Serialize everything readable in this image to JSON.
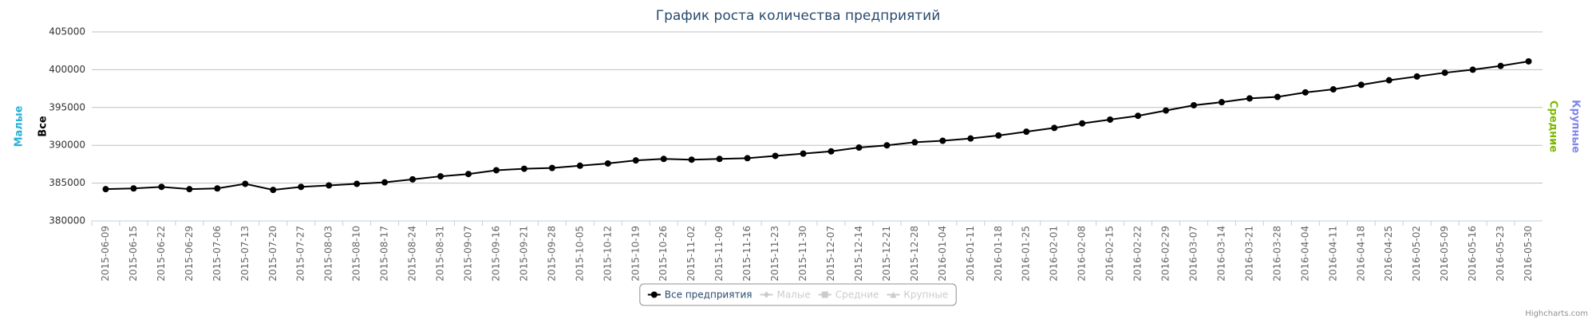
{
  "chart_data": {
    "type": "line",
    "title": "График роста количества предприятий",
    "categories": [
      "2015-06-09",
      "2015-06-15",
      "2015-06-22",
      "2015-06-29",
      "2015-07-06",
      "2015-07-13",
      "2015-07-20",
      "2015-07-27",
      "2015-08-03",
      "2015-08-10",
      "2015-08-17",
      "2015-08-24",
      "2015-08-31",
      "2015-09-07",
      "2015-09-16",
      "2015-09-21",
      "2015-09-28",
      "2015-10-05",
      "2015-10-12",
      "2015-10-19",
      "2015-10-26",
      "2015-11-02",
      "2015-11-09",
      "2015-11-16",
      "2015-11-23",
      "2015-11-30",
      "2015-12-07",
      "2015-12-14",
      "2015-12-21",
      "2015-12-28",
      "2016-01-04",
      "2016-01-11",
      "2016-01-18",
      "2016-01-25",
      "2016-02-01",
      "2016-02-08",
      "2016-02-15",
      "2016-02-22",
      "2016-02-29",
      "2016-03-07",
      "2016-03-14",
      "2016-03-21",
      "2016-03-28",
      "2016-04-04",
      "2016-04-11",
      "2016-04-18",
      "2016-04-25",
      "2016-05-02",
      "2016-05-09",
      "2016-05-16",
      "2016-05-23",
      "2016-05-30"
    ],
    "series": [
      {
        "name": "Все предприятия",
        "color": "#000000",
        "marker": "circle",
        "visible": true,
        "values": [
          384200,
          384300,
          384500,
          384200,
          384300,
          384900,
          384100,
          384500,
          384700,
          384900,
          385100,
          385500,
          385900,
          386200,
          386700,
          386900,
          387000,
          387300,
          387600,
          388000,
          388200,
          388100,
          388200,
          388300,
          388600,
          388900,
          389200,
          389700,
          390000,
          390400,
          390600,
          390900,
          391300,
          391800,
          392300,
          392900,
          393400,
          393900,
          394600,
          395300,
          395700,
          396200,
          396400,
          397000,
          397400,
          398000,
          398600,
          399100,
          399600,
          400000,
          400500,
          401100
        ]
      },
      {
        "name": "Малые",
        "color": "#2ab0d4",
        "marker": "diamond",
        "visible": false
      },
      {
        "name": "Средние",
        "color": "#7cb800",
        "marker": "square",
        "visible": false
      },
      {
        "name": "Крупные",
        "color": "#8085e9",
        "marker": "triangle",
        "visible": false
      }
    ],
    "axis_titles": {
      "left": [
        {
          "text": "Малые",
          "color": "#2ab0d4"
        },
        {
          "text": "Все",
          "color": "#000000"
        }
      ],
      "right": [
        {
          "text": "Средние",
          "color": "#7cb800"
        },
        {
          "text": "Крупные",
          "color": "#8085e9"
        }
      ]
    },
    "ylim": [
      380000,
      405000
    ],
    "yticks": [
      380000,
      385000,
      390000,
      395000,
      400000,
      405000
    ],
    "grid": true,
    "legend": "bottom",
    "credits": "Highcharts.com"
  }
}
